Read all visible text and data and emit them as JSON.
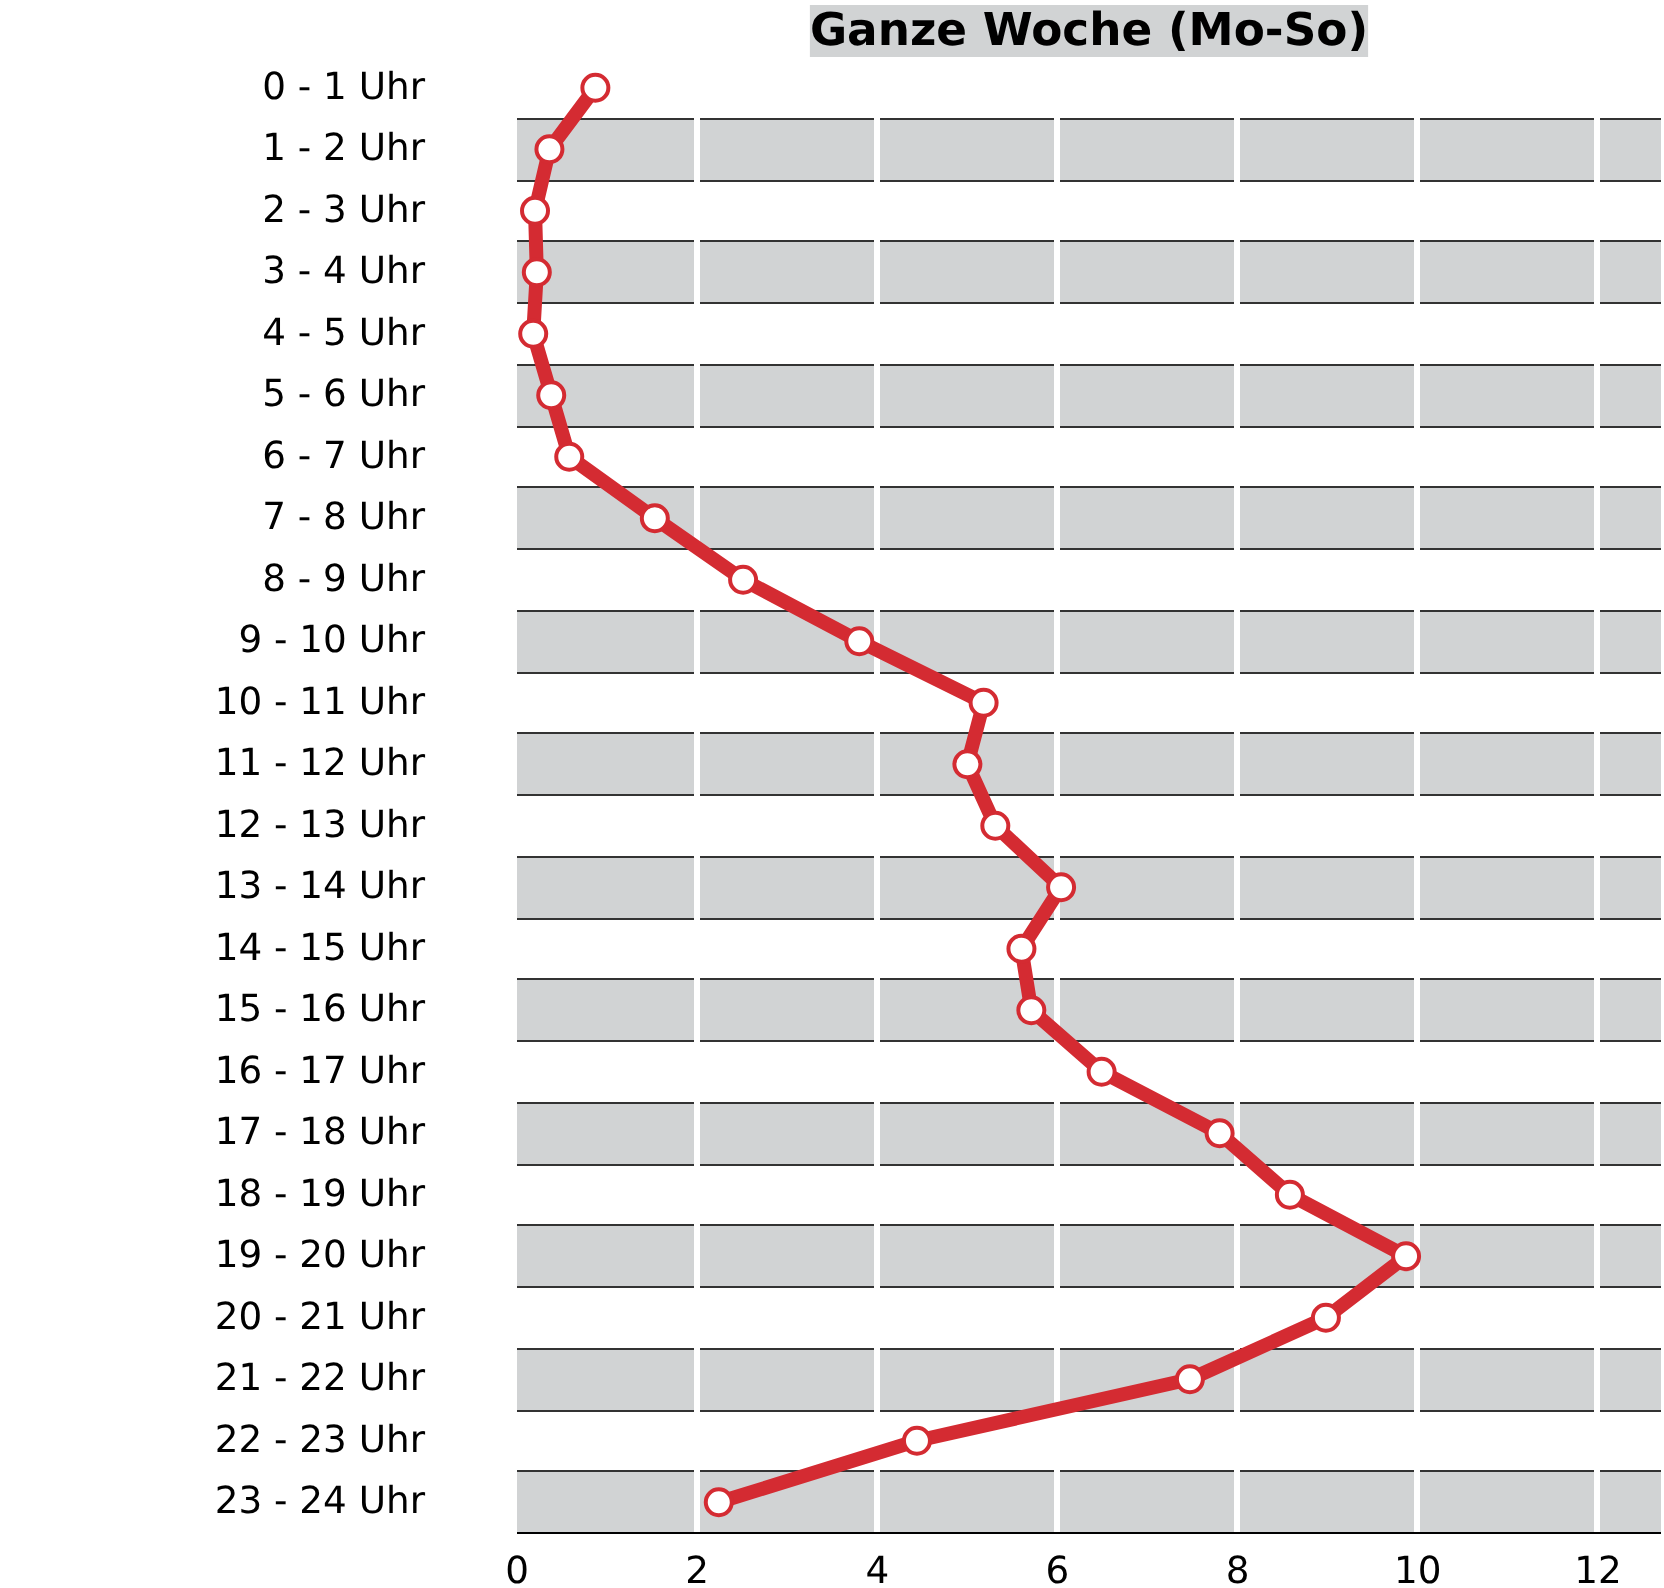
{
  "chart_data": {
    "type": "line",
    "orientation": "horizontal",
    "title": "Ganze Woche (Mo-So)",
    "categories": [
      "0 - 1 Uhr",
      "1 - 2 Uhr",
      "2 - 3 Uhr",
      "3 - 4 Uhr",
      "4 - 5 Uhr",
      "5 - 6 Uhr",
      "6 - 7 Uhr",
      "7 - 8 Uhr",
      "8 - 9 Uhr",
      "9 - 10 Uhr",
      "10 - 11 Uhr",
      "11 - 12 Uhr",
      "12 - 13 Uhr",
      "13 - 14 Uhr",
      "14 - 15 Uhr",
      "15 - 16 Uhr",
      "16 - 17 Uhr",
      "17 - 18 Uhr",
      "18 - 19 Uhr",
      "19 - 20 Uhr",
      "20 - 21 Uhr",
      "21 - 22 Uhr",
      "22 - 23 Uhr",
      "23 - 24 Uhr"
    ],
    "values": [
      0.87,
      0.36,
      0.2,
      0.22,
      0.18,
      0.38,
      0.58,
      1.53,
      2.51,
      3.8,
      5.18,
      5.0,
      5.31,
      6.04,
      5.6,
      5.71,
      6.49,
      7.8,
      8.58,
      9.87,
      8.98,
      7.47,
      4.44,
      2.24
    ],
    "color": "#d42b32",
    "marker": "circle",
    "line_style": "solid",
    "xlim": [
      0,
      12.7
    ],
    "xticks": [
      0,
      2,
      4,
      6,
      8,
      10,
      12
    ],
    "grid": true
  }
}
